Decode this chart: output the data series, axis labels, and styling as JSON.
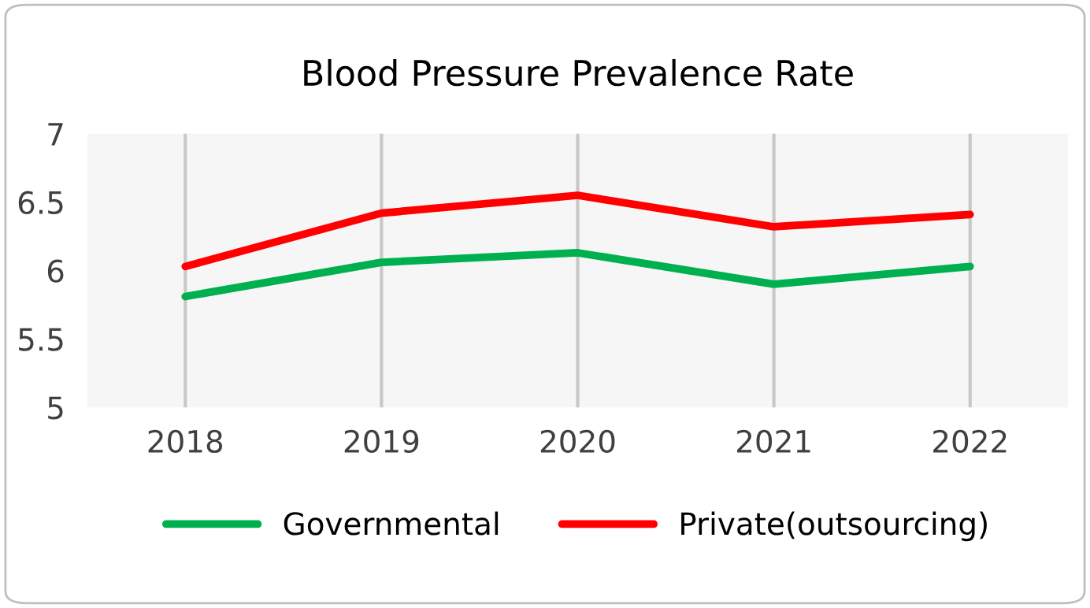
{
  "chart_data": {
    "type": "line",
    "title": "Blood Pressure Prevalence Rate",
    "categories": [
      "2018",
      "2019",
      "2020",
      "2021",
      "2022"
    ],
    "series": [
      {
        "name": "Governmental",
        "color": "#00b050",
        "values": [
          5.81,
          6.06,
          6.13,
          5.9,
          6.03
        ]
      },
      {
        "name": "Private(outsourcing)",
        "color": "#ff0000",
        "values": [
          6.03,
          6.42,
          6.55,
          6.32,
          6.41
        ]
      }
    ],
    "ylim": [
      5,
      7
    ],
    "yticks": [
      5,
      5.5,
      6,
      6.5,
      7
    ],
    "grid": "x",
    "legend": "bottom",
    "marker": "none",
    "line_style": "solid"
  }
}
